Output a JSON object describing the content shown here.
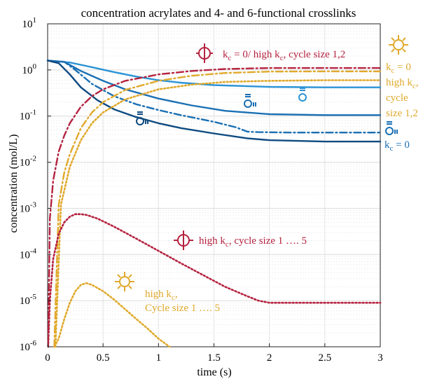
{
  "chart_data": {
    "type": "line",
    "title": "concentration acrylates and 4- and 6-functional crosslinks",
    "xlabel": "time (s)",
    "ylabel": "concentration (mol/L)",
    "xlim": [
      0,
      3
    ],
    "ylim_exponents": [
      -6,
      1
    ],
    "yscale": "log",
    "grid": true,
    "x_ticks": [
      "0",
      "0.5",
      "1",
      "1.5",
      "2",
      "2.5",
      "3"
    ],
    "x_tick_values": [
      0,
      0.5,
      1,
      1.5,
      2,
      2.5,
      3
    ],
    "y_tick_exponents": [
      -6,
      -5,
      -4,
      -3,
      -2,
      -1,
      0,
      1
    ],
    "y_tick_base": "10",
    "colors": {
      "crimson": "#b5223f",
      "gold": "#e0a92c",
      "blue_light": "#2b93d6",
      "blue_mid": "#1a6fb3",
      "blue_dark": "#0e4a80"
    },
    "series": [
      {
        "color": "#2b93d6",
        "dash": "solid",
        "x": [
          0,
          0.2,
          0.4,
          0.6,
          0.8,
          1.0,
          1.2,
          1.5,
          2.0,
          2.5,
          3.0
        ],
        "y": [
          1.6,
          1.45,
          1.15,
          0.9,
          0.72,
          0.6,
          0.53,
          0.47,
          0.43,
          0.42,
          0.42
        ]
      },
      {
        "color": "#1a6fb3",
        "dash": "solid",
        "x": [
          0,
          0.15,
          0.3,
          0.5,
          0.7,
          1.0,
          1.3,
          1.6,
          2.0,
          2.5,
          3.0
        ],
        "y": [
          1.6,
          1.5,
          0.95,
          0.58,
          0.38,
          0.24,
          0.17,
          0.13,
          0.11,
          0.105,
          0.105
        ]
      },
      {
        "color": "#1a6fb3",
        "dash": "dashdot",
        "x": [
          0,
          0.15,
          0.25,
          0.4,
          0.6,
          0.8,
          1.0,
          1.2,
          1.5,
          1.7,
          1.8,
          1.9,
          2.2,
          2.6,
          3.0
        ],
        "y": [
          1.6,
          1.5,
          1.0,
          0.5,
          0.27,
          0.18,
          0.135,
          0.105,
          0.075,
          0.057,
          0.046,
          0.045,
          0.044,
          0.044,
          0.044
        ]
      },
      {
        "color": "#0e4a80",
        "dash": "solid",
        "x": [
          0,
          0.1,
          0.2,
          0.3,
          0.45,
          0.6,
          0.8,
          1.0,
          1.2,
          1.5,
          1.8,
          2.0,
          2.5,
          3.0
        ],
        "y": [
          1.6,
          1.4,
          0.8,
          0.42,
          0.22,
          0.14,
          0.095,
          0.07,
          0.055,
          0.042,
          0.033,
          0.03,
          0.028,
          0.028
        ]
      },
      {
        "color": "#b5223f",
        "dash": "dashdot",
        "x": [
          0.005,
          0.02,
          0.05,
          0.1,
          0.15,
          0.2,
          0.3,
          0.4,
          0.5,
          0.7,
          1.0,
          1.3,
          1.6,
          2.0,
          2.5,
          3.0
        ],
        "y": [
          1e-06,
          0.0006,
          0.004,
          0.017,
          0.038,
          0.07,
          0.16,
          0.27,
          0.38,
          0.58,
          0.8,
          0.95,
          1.05,
          1.1,
          1.1,
          1.1
        ]
      },
      {
        "color": "#e0a92c",
        "dash": "dashdot",
        "x": [
          0.06,
          0.1,
          0.15,
          0.2,
          0.3,
          0.4,
          0.5,
          0.7,
          1.0,
          1.3,
          1.6,
          2.0,
          2.5,
          3.0
        ],
        "y": [
          1e-06,
          0.0012,
          0.006,
          0.015,
          0.055,
          0.12,
          0.2,
          0.37,
          0.58,
          0.75,
          0.86,
          0.92,
          0.93,
          0.93
        ]
      },
      {
        "color": "#e0a92c",
        "dash": "dotted",
        "x": [
          0.07,
          0.12,
          0.2,
          0.3,
          0.4,
          0.5,
          0.7,
          1.0,
          1.3,
          1.6,
          2.0,
          2.5,
          3.0
        ],
        "y": [
          1e-06,
          0.0012,
          0.008,
          0.03,
          0.07,
          0.12,
          0.23,
          0.38,
          0.48,
          0.55,
          0.58,
          0.6,
          0.6
        ]
      },
      {
        "color": "#b5223f",
        "dash": "dotted",
        "x": [
          0.005,
          0.02,
          0.05,
          0.1,
          0.15,
          0.2,
          0.25,
          0.3,
          0.35,
          0.45,
          0.6,
          0.8,
          1.0,
          1.2,
          1.4,
          1.6,
          1.8,
          1.9,
          2.0,
          2.5,
          3.0
        ],
        "y": [
          1e-06,
          1e-05,
          8e-05,
          0.00028,
          0.0005,
          0.00066,
          0.00075,
          0.00075,
          0.00072,
          0.0006,
          0.0004,
          0.00022,
          0.00012,
          6.5e-05,
          3.6e-05,
          2e-05,
          1.25e-05,
          1e-05,
          9e-06,
          9e-06,
          9e-06
        ]
      },
      {
        "color": "#e0a92c",
        "dash": "dotted",
        "x": [
          0.06,
          0.1,
          0.15,
          0.2,
          0.25,
          0.3,
          0.35,
          0.4,
          0.5,
          0.6,
          0.7,
          0.8,
          0.9,
          1.0,
          1.1
        ],
        "y": [
          1e-06,
          1.5e-06,
          4e-06,
          9e-06,
          1.6e-05,
          2.2e-05,
          2.4e-05,
          2.2e-05,
          1.6e-05,
          1.05e-05,
          6.5e-06,
          4e-06,
          2.5e-06,
          1.5e-06,
          1e-06
        ]
      }
    ],
    "annotations": {
      "red_top": "k",
      "red_top_sub": "c",
      "red_top_rest": " = 0/ high k",
      "red_top_sub2": "c",
      "red_top_tail": ", cycle size 1,2",
      "red_mid": "high k",
      "red_mid_sub": "c",
      "red_mid_tail": ", cycle size 1 …. 5",
      "gold_right_1": "k",
      "gold_right_1_sub": "c",
      "gold_right_1_tail": " = 0",
      "gold_right_2": "high k",
      "gold_right_2_sub": "c",
      "gold_right_2_tail": ",",
      "gold_right_3": "cycle",
      "gold_right_4": "size 1,2",
      "gold_low_1": "high k",
      "gold_low_1_sub": "c",
      "gold_low_1_tail": ",",
      "gold_low_2": "Cycle size 1 …. 5",
      "blue_right": "k",
      "blue_right_sub": "c",
      "blue_right_tail": " = 0"
    }
  }
}
